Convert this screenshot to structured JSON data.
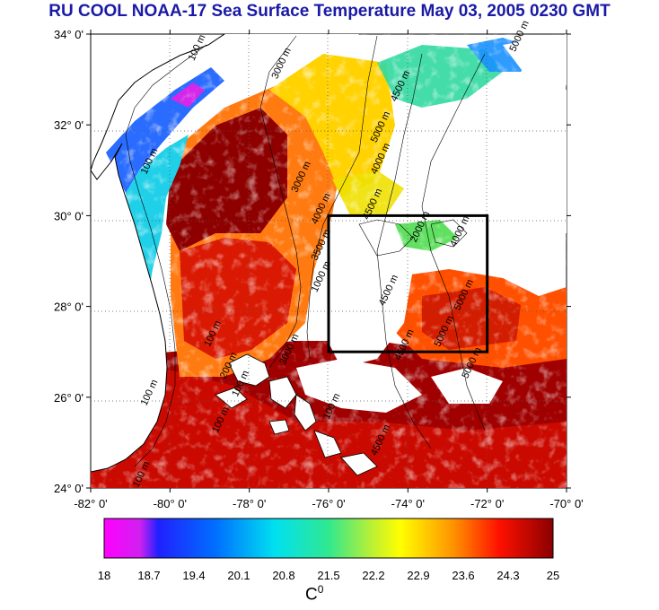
{
  "title": "RU COOL  NOAA-17 Sea Surface Temperature May 03, 2005 0230 GMT",
  "map": {
    "lon_ticks": [
      "-82° 0'",
      "-80° 0'",
      "-78° 0'",
      "-76° 0'",
      "-74° 0'",
      "-72° 0'",
      "-70° 0'"
    ],
    "lat_ticks": [
      "24° 0'",
      "26° 0'",
      "28° 0'",
      "30° 0'",
      "32° 0'",
      "34° 0'"
    ],
    "lon_range": [
      -82,
      -70
    ],
    "lat_range": [
      24,
      34
    ],
    "study_box": {
      "lon": [
        -76,
        -72
      ],
      "lat": [
        27,
        30
      ]
    },
    "contour_labels": [
      {
        "text": "100 m",
        "lon": -79.4,
        "lat": 33.4
      },
      {
        "text": "3000 m",
        "lon": -77.3,
        "lat": 33.0
      },
      {
        "text": "5000 m",
        "lon": -71.3,
        "lat": 33.6
      },
      {
        "text": "4500 m",
        "lon": -74.3,
        "lat": 32.5
      },
      {
        "text": "5000 m",
        "lon": -74.8,
        "lat": 31.6
      },
      {
        "text": "4000 m",
        "lon": -74.8,
        "lat": 30.9
      },
      {
        "text": "100 m",
        "lon": -80.6,
        "lat": 30.9
      },
      {
        "text": "3000 m",
        "lon": -76.8,
        "lat": 30.5
      },
      {
        "text": "4000 m",
        "lon": -76.3,
        "lat": 29.8
      },
      {
        "text": "4500 m",
        "lon": -75.0,
        "lat": 29.9
      },
      {
        "text": "2000 m",
        "lon": -73.8,
        "lat": 29.4
      },
      {
        "text": "4000 m",
        "lon": -72.8,
        "lat": 29.3
      },
      {
        "text": "3500 m",
        "lon": -76.3,
        "lat": 29.0
      },
      {
        "text": "4500 m",
        "lon": -74.6,
        "lat": 28.0
      },
      {
        "text": "5000 m",
        "lon": -72.7,
        "lat": 27.9
      },
      {
        "text": "5000 m",
        "lon": -73.2,
        "lat": 27.1
      },
      {
        "text": "1000 m",
        "lon": -76.3,
        "lat": 28.3
      },
      {
        "text": "100 m",
        "lon": -79.0,
        "lat": 27.1
      },
      {
        "text": "3000 m",
        "lon": -77.1,
        "lat": 26.7
      },
      {
        "text": "200 m",
        "lon": -78.6,
        "lat": 26.4
      },
      {
        "text": "100 m",
        "lon": -78.3,
        "lat": 26.0
      },
      {
        "text": "100 m",
        "lon": -80.6,
        "lat": 25.8
      },
      {
        "text": "4500 m",
        "lon": -74.2,
        "lat": 26.8
      },
      {
        "text": "5000 m",
        "lon": -72.5,
        "lat": 26.4
      },
      {
        "text": "100 m",
        "lon": -78.8,
        "lat": 25.2
      },
      {
        "text": "100 m",
        "lon": -76.0,
        "lat": 25.5
      },
      {
        "text": "4500 m",
        "lon": -74.8,
        "lat": 24.7
      },
      {
        "text": "100 m",
        "lon": -80.8,
        "lat": 24.0
      }
    ]
  },
  "colorbar": {
    "ticks": [
      "18",
      "18.7",
      "19.4",
      "20.1",
      "20.8",
      "21.5",
      "22.2",
      "22.9",
      "23.6",
      "24.3",
      "25"
    ],
    "min": 18,
    "max": 25,
    "unit_base": "C",
    "unit_sup": "0"
  },
  "colors": {
    "title": "#1a1aa6",
    "land": "#ffffff",
    "box": "#000000"
  }
}
